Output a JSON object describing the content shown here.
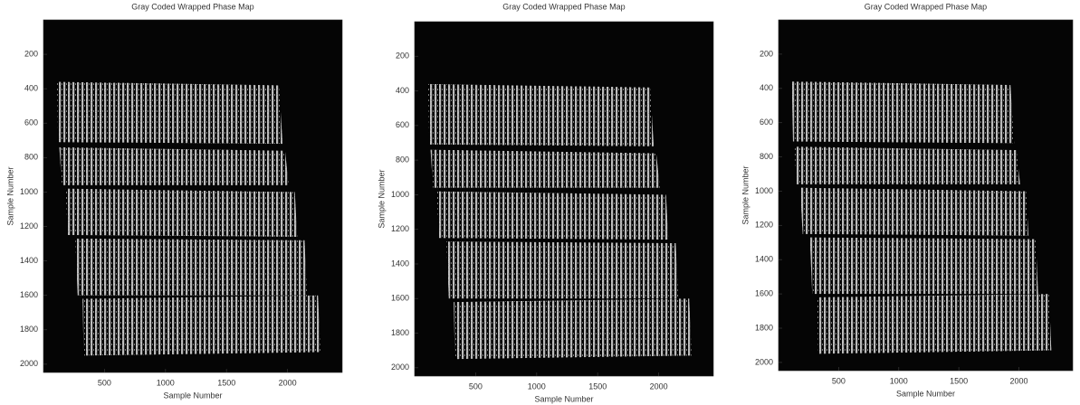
{
  "chart_data": [
    {
      "type": "image",
      "title": "Gray Coded Wrapped Phase Map",
      "xlabel": "Sample Number",
      "ylabel": "Sample Number",
      "xlim": [
        0,
        2448
      ],
      "ylim": [
        2048,
        0
      ],
      "xticks": [
        500,
        1000,
        1500,
        2000
      ],
      "yticks": [
        200,
        400,
        600,
        800,
        1000,
        1200,
        1400,
        1600,
        1800,
        2000
      ]
    },
    {
      "type": "image",
      "title": "Gray Coded Wrapped Phase Map",
      "xlabel": "Sample Number",
      "ylabel": "Sample Number",
      "xlim": [
        0,
        2448
      ],
      "ylim": [
        2048,
        0
      ],
      "xticks": [
        500,
        1000,
        1500,
        2000
      ],
      "yticks": [
        200,
        400,
        600,
        800,
        1000,
        1200,
        1400,
        1600,
        1800,
        2000
      ]
    },
    {
      "type": "image",
      "title": "Gray Coded Wrapped Phase Map",
      "xlabel": "Sample Number",
      "ylabel": "Sample Number",
      "xlim": [
        0,
        2448
      ],
      "ylim": [
        2048,
        0
      ],
      "xticks": [
        500,
        1000,
        1500,
        2000
      ],
      "yticks": [
        200,
        400,
        600,
        800,
        1000,
        1200,
        1400,
        1600,
        1800,
        2000
      ]
    }
  ]
}
